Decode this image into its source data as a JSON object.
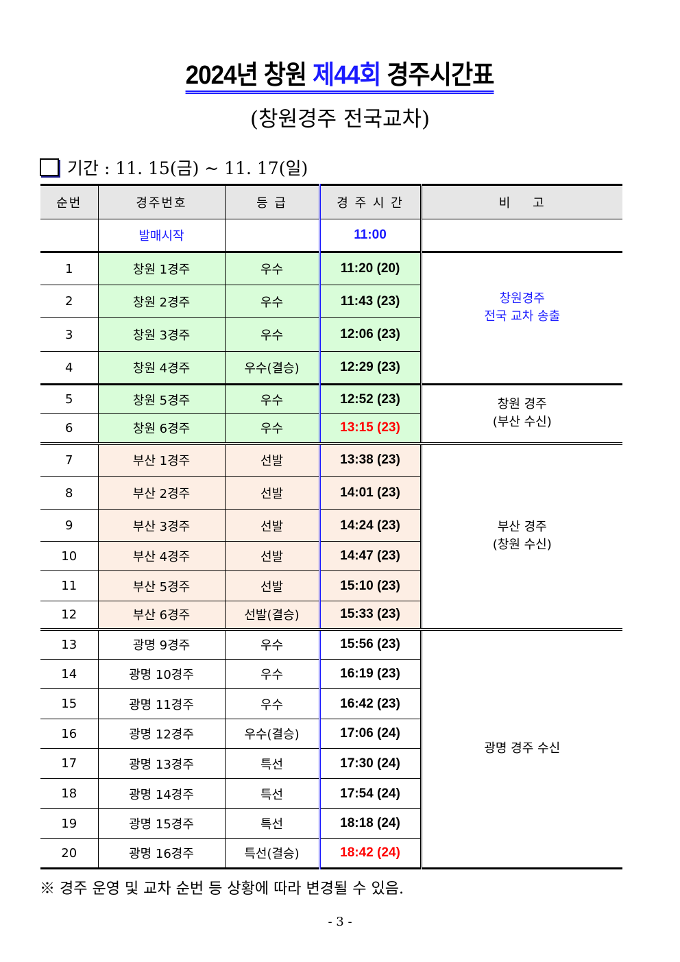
{
  "title": {
    "part1": "2024년 창원 ",
    "part2": "제44회",
    "part3": " 경주시간표",
    "accent": "#1a1aff"
  },
  "subtitle": "(창원경주 전국교차)",
  "period": "기간 : 11. 15(금) ~ 11. 17(일)",
  "headers": [
    "순번",
    "경주번호",
    "등 급",
    "경 주 시 간",
    "비    고"
  ],
  "sale_start": {
    "label": "발매시작",
    "time": "11:00"
  },
  "rows": [
    {
      "no": "1",
      "race": "창원 1경주",
      "grade": "우수",
      "time": "11:20 (20)",
      "bg": "green"
    },
    {
      "no": "2",
      "race": "창원 2경주",
      "grade": "우수",
      "time": "11:43 (23)",
      "bg": "green"
    },
    {
      "no": "3",
      "race": "창원 3경주",
      "grade": "우수",
      "time": "12:06 (23)",
      "bg": "green"
    },
    {
      "no": "4",
      "race": "창원 4경주",
      "grade": "우수(결승)",
      "time": "12:29 (23)",
      "bg": "green"
    },
    {
      "no": "5",
      "race": "창원 5경주",
      "grade": "우수",
      "time": "12:52 (23)",
      "bg": "green"
    },
    {
      "no": "6",
      "race": "창원 6경주",
      "grade": "우수",
      "time": "13:15 (23)",
      "bg": "green",
      "red": true
    },
    {
      "no": "7",
      "race": "부산 1경주",
      "grade": "선발",
      "time": "13:38 (23)",
      "bg": "peach"
    },
    {
      "no": "8",
      "race": "부산 2경주",
      "grade": "선발",
      "time": "14:01 (23)",
      "bg": "peach"
    },
    {
      "no": "9",
      "race": "부산 3경주",
      "grade": "선발",
      "time": "14:24 (23)",
      "bg": "peach"
    },
    {
      "no": "10",
      "race": "부산 4경주",
      "grade": "선발",
      "time": "14:47 (23)",
      "bg": "peach"
    },
    {
      "no": "11",
      "race": "부산 5경주",
      "grade": "선발",
      "time": "15:10 (23)",
      "bg": "peach"
    },
    {
      "no": "12",
      "race": "부산 6경주",
      "grade": "선발(결승)",
      "time": "15:33 (23)",
      "bg": "peach"
    },
    {
      "no": "13",
      "race": "광명 9경주",
      "grade": "우수",
      "time": "15:56 (23)",
      "bg": "white"
    },
    {
      "no": "14",
      "race": "광명 10경주",
      "grade": "우수",
      "time": "16:19 (23)",
      "bg": "white"
    },
    {
      "no": "15",
      "race": "광명 11경주",
      "grade": "우수",
      "time": "16:42 (23)",
      "bg": "white"
    },
    {
      "no": "16",
      "race": "광명 12경주",
      "grade": "우수(결승)",
      "time": "17:06 (24)",
      "bg": "white"
    },
    {
      "no": "17",
      "race": "광명 13경주",
      "grade": "특선",
      "time": "17:30 (24)",
      "bg": "white"
    },
    {
      "no": "18",
      "race": "광명 14경주",
      "grade": "특선",
      "time": "17:54 (24)",
      "bg": "white"
    },
    {
      "no": "19",
      "race": "광명 15경주",
      "grade": "특선",
      "time": "18:18 (24)",
      "bg": "white"
    },
    {
      "no": "20",
      "race": "광명 16경주",
      "grade": "특선(결승)",
      "time": "18:42 (24)",
      "bg": "white",
      "red": true
    }
  ],
  "notes": [
    {
      "lines": [
        "창원경주",
        "전국 교차 송출"
      ],
      "blue": true
    },
    {
      "lines": [
        "창원 경주",
        "(부산 수신)"
      ]
    },
    {
      "lines": [
        "부산 경주",
        "(창원 수신)"
      ]
    },
    {
      "lines": [
        "광명 경주 수신"
      ]
    }
  ],
  "footnote": "※ 경주 운영 및 교차 순번 등 상황에 따라 변경될 수 있음.",
  "page_number": "- 3 -"
}
